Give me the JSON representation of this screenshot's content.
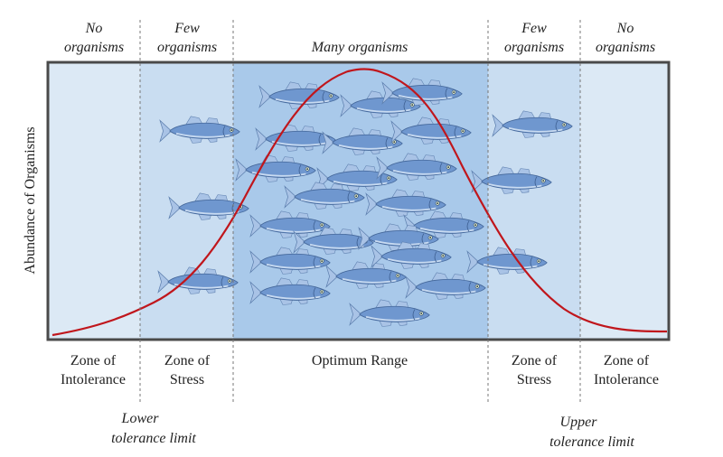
{
  "top_labels": {
    "left_outer": [
      "No",
      "organisms"
    ],
    "left_inner": [
      "Few",
      "organisms"
    ],
    "center": "Many organisms",
    "right_inner": [
      "Few",
      "organisms"
    ],
    "right_outer": [
      "No",
      "organisms"
    ]
  },
  "y_axis_label": "Abundance of Organisms",
  "zone_labels": {
    "left_intolerance": [
      "Zone of",
      "Intolerance"
    ],
    "left_stress": [
      "Zone of",
      "Stress"
    ],
    "optimum": "Optimum Range",
    "right_stress": [
      "Zone of",
      "Stress"
    ],
    "right_intolerance": [
      "Zone of",
      "Intolerance"
    ]
  },
  "limit_labels": {
    "lower": [
      "Lower",
      "tolerance limit"
    ],
    "upper": [
      "Upper",
      "tolerance limit"
    ]
  },
  "colors": {
    "intolerance_zone": "#dce9f5",
    "stress_zone": "#c9ddf1",
    "optimum_zone": "#a9c9ea",
    "curve": "#c0161c",
    "frame": "#4a4a4a",
    "fish_body": "#6f97cf",
    "fish_fin": "#a9c3e6",
    "divider": "#777777"
  },
  "icons": {
    "organism": "fish-icon"
  }
}
